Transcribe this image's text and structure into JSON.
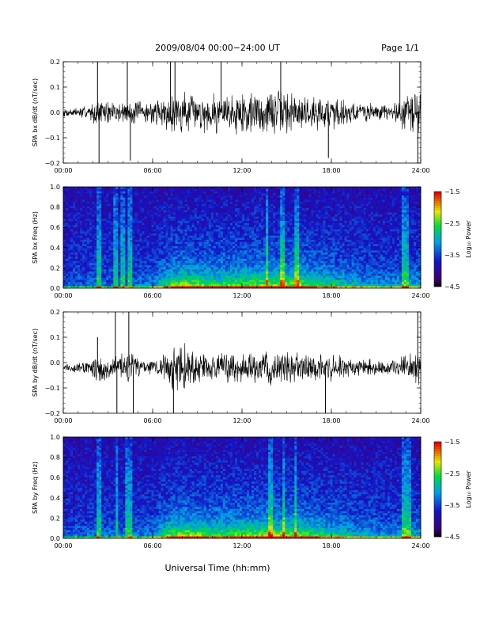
{
  "header": {
    "title": "2009/08/04  00:00−24:00 UT",
    "page": "Page 1/1"
  },
  "xlabel": "Universal Time (hh:mm)",
  "chart_data": [
    {
      "type": "line",
      "ylabel": "SPA bx dB/dt (nT/sec)",
      "xlim": [
        0,
        24
      ],
      "ylim": [
        -0.2,
        0.2
      ],
      "x_ticks": [
        "00:00",
        "06:00",
        "12:00",
        "18:00",
        "24:00"
      ],
      "y_ticks": [
        "0.2",
        "0.1",
        "0.0",
        "−0.1",
        "−0.2"
      ],
      "y_tick_values": [
        0.2,
        0.1,
        0.0,
        -0.1,
        -0.2
      ],
      "baseline": 0.0,
      "envelope": [
        [
          0,
          0.015
        ],
        [
          1,
          0.02
        ],
        [
          1.8,
          0.03
        ],
        [
          2.5,
          0.05
        ],
        [
          3.5,
          0.04
        ],
        [
          4.5,
          0.05
        ],
        [
          5.5,
          0.04
        ],
        [
          6.5,
          0.05
        ],
        [
          7.2,
          0.07
        ],
        [
          8,
          0.09
        ],
        [
          9,
          0.06
        ],
        [
          10,
          0.08
        ],
        [
          11,
          0.07
        ],
        [
          12,
          0.09
        ],
        [
          13,
          0.09
        ],
        [
          14,
          0.08
        ],
        [
          15,
          0.09
        ],
        [
          16,
          0.07
        ],
        [
          17,
          0.06
        ],
        [
          18,
          0.07
        ],
        [
          19,
          0.05
        ],
        [
          20,
          0.04
        ],
        [
          21,
          0.03
        ],
        [
          22,
          0.03
        ],
        [
          22.7,
          0.06
        ],
        [
          23.2,
          0.08
        ],
        [
          24,
          0.08
        ]
      ],
      "spikes": [
        [
          2.3,
          0.2
        ],
        [
          2.4,
          -0.2
        ],
        [
          4.3,
          0.2
        ],
        [
          4.5,
          -0.19
        ],
        [
          7.2,
          0.2
        ],
        [
          7.5,
          0.2
        ],
        [
          10.6,
          0.2
        ],
        [
          14.6,
          0.2
        ],
        [
          17.8,
          -0.18
        ],
        [
          22.6,
          0.2
        ],
        [
          23.8,
          -0.2
        ]
      ]
    },
    {
      "type": "heatmap",
      "ylabel": "SPA bx Freq (Hz)",
      "xlim": [
        0,
        24
      ],
      "ylim": [
        0,
        1
      ],
      "x_ticks": [
        "00:00",
        "06:00",
        "12:00",
        "18:00",
        "24:00"
      ],
      "y_ticks": [
        "1.0",
        "0.8",
        "0.6",
        "0.4",
        "0.2",
        "0.0"
      ],
      "y_tick_values": [
        1,
        0.8,
        0.6,
        0.4,
        0.2,
        0
      ],
      "colorbar": {
        "label": "Log₁₀ Power",
        "range": [
          -4.5,
          -1.5
        ],
        "ticks": [
          "−1.5",
          "−2.5",
          "−3.5",
          "−4.5"
        ],
        "tick_values": [
          -1.5,
          -2.5,
          -3.5,
          -4.5
        ]
      },
      "activity": [
        [
          0,
          0.1
        ],
        [
          2,
          0.15
        ],
        [
          4,
          0.15
        ],
        [
          6,
          0.2
        ],
        [
          7,
          0.5
        ],
        [
          8,
          0.65
        ],
        [
          10,
          0.55
        ],
        [
          12,
          0.6
        ],
        [
          14,
          0.65
        ],
        [
          16,
          0.6
        ],
        [
          18,
          0.45
        ],
        [
          20,
          0.3
        ],
        [
          22,
          0.25
        ],
        [
          24,
          0.3
        ]
      ],
      "streaks": [
        2.4,
        3.5,
        4.0,
        4.5,
        13.7,
        14.7,
        15.7,
        22.9,
        23.1
      ],
      "seed": 11
    },
    {
      "type": "line",
      "ylabel": "SPA by dB/dt (nT/sec)",
      "xlim": [
        0,
        24
      ],
      "ylim": [
        -0.2,
        0.2
      ],
      "x_ticks": [
        "00:00",
        "06:00",
        "12:00",
        "18:00",
        "24:00"
      ],
      "y_ticks": [
        "0.2",
        "0.1",
        "0.0",
        "−0.1",
        "−0.2"
      ],
      "y_tick_values": [
        0.2,
        0.1,
        0.0,
        -0.1,
        -0.2
      ],
      "baseline": -0.02,
      "envelope": [
        [
          0,
          0.015
        ],
        [
          1,
          0.02
        ],
        [
          1.8,
          0.03
        ],
        [
          2.5,
          0.06
        ],
        [
          3.5,
          0.05
        ],
        [
          4.5,
          0.06
        ],
        [
          5.5,
          0.03
        ],
        [
          6.5,
          0.04
        ],
        [
          7.2,
          0.08
        ],
        [
          8,
          0.1
        ],
        [
          9,
          0.06
        ],
        [
          10,
          0.05
        ],
        [
          11,
          0.06
        ],
        [
          12,
          0.05
        ],
        [
          13,
          0.06
        ],
        [
          14,
          0.06
        ],
        [
          15,
          0.07
        ],
        [
          16,
          0.05
        ],
        [
          17,
          0.05
        ],
        [
          18,
          0.06
        ],
        [
          19,
          0.04
        ],
        [
          20,
          0.03
        ],
        [
          21,
          0.03
        ],
        [
          22,
          0.03
        ],
        [
          22.7,
          0.04
        ],
        [
          23.2,
          0.05
        ],
        [
          24,
          0.06
        ]
      ],
      "spikes": [
        [
          2.3,
          0.1
        ],
        [
          3.5,
          0.2
        ],
        [
          3.6,
          -0.2
        ],
        [
          4.4,
          0.2
        ],
        [
          4.7,
          -0.2
        ],
        [
          7.4,
          -0.2
        ],
        [
          17.6,
          -0.2
        ],
        [
          23.8,
          0.2
        ]
      ]
    },
    {
      "type": "heatmap",
      "ylabel": "SPA by Freq (Hz)",
      "xlim": [
        0,
        24
      ],
      "ylim": [
        0,
        1
      ],
      "x_ticks": [
        "00:00",
        "06:00",
        "12:00",
        "18:00",
        "24:00"
      ],
      "y_ticks": [
        "1.0",
        "0.8",
        "0.6",
        "0.4",
        "0.2",
        "0.0"
      ],
      "y_tick_values": [
        1,
        0.8,
        0.6,
        0.4,
        0.2,
        0
      ],
      "colorbar": {
        "label": "Log₁₀ Power",
        "range": [
          -4.5,
          -1.5
        ],
        "ticks": [
          "−1.5",
          "−2.5",
          "−3.5",
          "−4.5"
        ],
        "tick_values": [
          -1.5,
          -2.5,
          -3.5,
          -4.5
        ]
      },
      "activity": [
        [
          0,
          0.1
        ],
        [
          2,
          0.15
        ],
        [
          4,
          0.15
        ],
        [
          6,
          0.2
        ],
        [
          7,
          0.55
        ],
        [
          8,
          0.7
        ],
        [
          10,
          0.55
        ],
        [
          12,
          0.6
        ],
        [
          14,
          0.65
        ],
        [
          16,
          0.6
        ],
        [
          18,
          0.45
        ],
        [
          20,
          0.3
        ],
        [
          22,
          0.25
        ],
        [
          24,
          0.3
        ]
      ],
      "streaks": [
        2.4,
        3.6,
        4.3,
        4.6,
        13.9,
        14.8,
        15.6,
        22.9,
        23.2
      ],
      "seed": 23
    }
  ]
}
